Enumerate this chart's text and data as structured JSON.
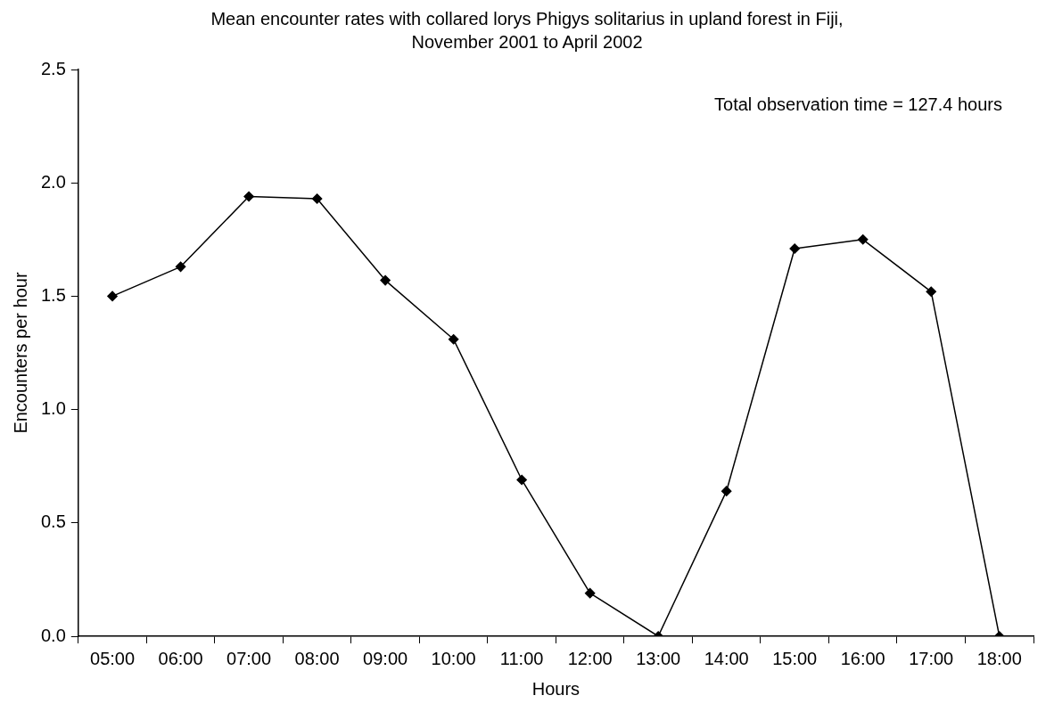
{
  "chart_data": {
    "type": "line",
    "title": "Mean encounter rates with collared lorys Phigys solitarius in upland forest in Fiji, November 2001 to April 2002",
    "xlabel": "Hours",
    "ylabel": "Encounters per hour",
    "categories": [
      "05:00",
      "06:00",
      "07:00",
      "08:00",
      "09:00",
      "10:00",
      "11:00",
      "12:00",
      "13:00",
      "14:00",
      "15:00",
      "16:00",
      "17:00",
      "18:00"
    ],
    "series": [
      {
        "color": "#000000",
        "values": [
          1.5,
          1.63,
          1.94,
          1.93,
          1.57,
          1.31,
          0.69,
          0.19,
          0.0,
          0.64,
          1.71,
          1.75,
          1.52,
          0.0
        ]
      }
    ],
    "ylim": [
      0,
      2.5
    ],
    "yticks": [
      {
        "value": 0,
        "label": "0.0"
      },
      {
        "value": 0.5,
        "label": "0.5"
      },
      {
        "value": 1,
        "label": "1.0"
      },
      {
        "value": 1.5,
        "label": "1.5"
      },
      {
        "value": 2,
        "label": "2.0"
      },
      {
        "value": 2.5,
        "label": "2.5"
      }
    ],
    "annotations": [
      "Total observation time = 127.4 hours"
    ],
    "grid": false,
    "legend": false,
    "marker": "diamond",
    "line_style": "solid"
  }
}
